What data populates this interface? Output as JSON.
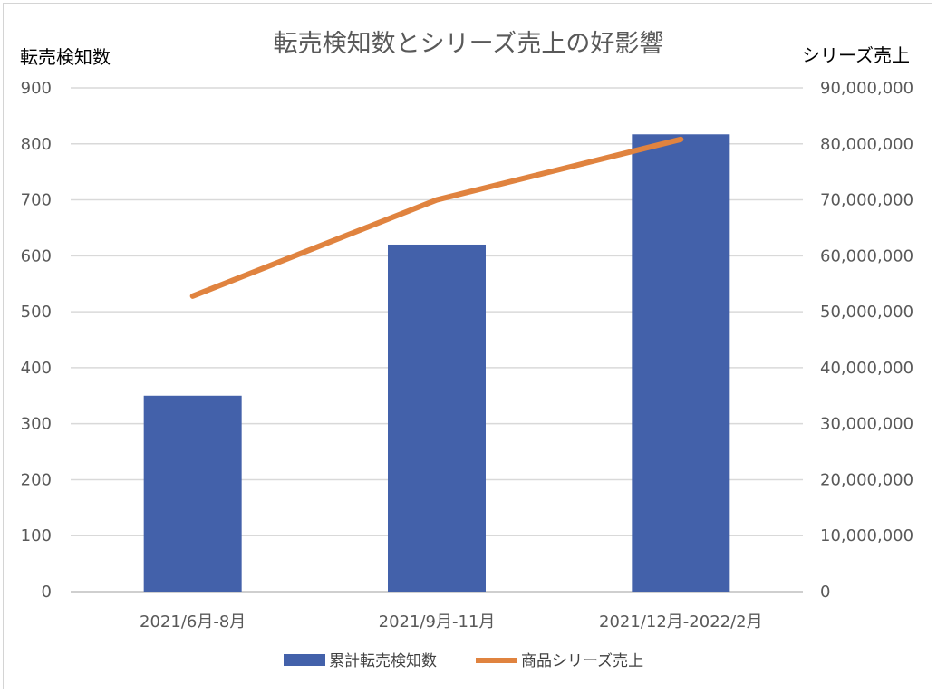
{
  "chart_data": {
    "type": "bar+line",
    "title": "転売検知数とシリーズ売上の好影響",
    "categories": [
      "2021/6月-8月",
      "2021/9月-11月",
      "2021/12月-2022/2月"
    ],
    "y_left": {
      "label": "転売検知数",
      "ylim": [
        0,
        900
      ],
      "ticks": [
        "0",
        "100",
        "200",
        "300",
        "400",
        "500",
        "600",
        "700",
        "800",
        "900"
      ]
    },
    "y_right": {
      "label": "シリーズ売上",
      "ylim": [
        0,
        90000000
      ],
      "ticks": [
        "0",
        "10,000,000",
        "20,000,000",
        "30,000,000",
        "40,000,000",
        "50,000,000",
        "60,000,000",
        "70,000,000",
        "80,000,000",
        "90,000,000"
      ]
    },
    "series": [
      {
        "name": "累計転売検知数",
        "type": "bar",
        "axis": "left",
        "values": [
          350,
          620,
          817
        ]
      },
      {
        "name": "商品シリーズ売上",
        "type": "line",
        "axis": "right",
        "values": [
          52800000,
          70000000,
          80800000
        ]
      }
    ],
    "grid": true,
    "legend_position": "bottom",
    "colors": {
      "bar": "#4361AA",
      "line": "#E0833F",
      "grid": "#d9d9d9",
      "axis": "#bfbfbf"
    }
  }
}
